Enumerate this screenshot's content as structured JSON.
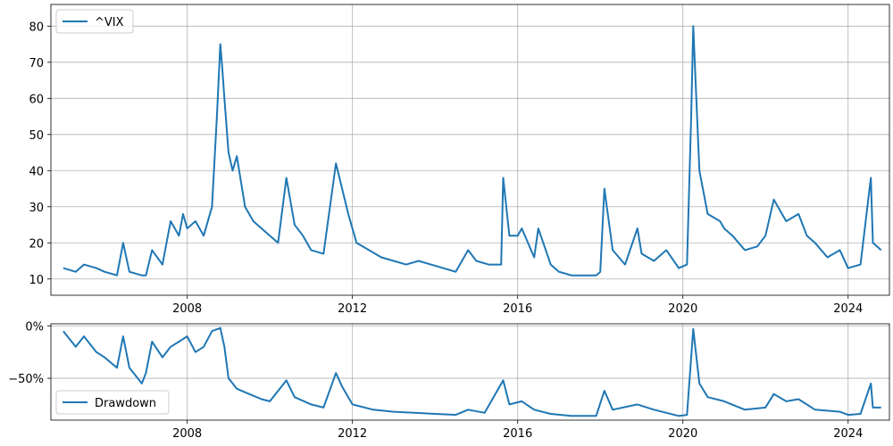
{
  "chart_data": [
    {
      "type": "line",
      "legend": {
        "location": "upper-left"
      },
      "grid": true,
      "xlim": [
        2004.7,
        2025.0
      ],
      "ylim": [
        5.5,
        86
      ],
      "xticks": [
        2008,
        2012,
        2016,
        2020,
        2024
      ],
      "xtick_labels": [
        "2008",
        "2012",
        "2016",
        "2020",
        "2024"
      ],
      "yticks": [
        10,
        20,
        30,
        40,
        50,
        60,
        70,
        80
      ],
      "ytick_labels": [
        "10",
        "20",
        "30",
        "40",
        "50",
        "60",
        "70",
        "80"
      ],
      "series": [
        {
          "name": "^VIX",
          "color": "#1f77b4",
          "x": [
            2005.0,
            2005.3,
            2005.5,
            2005.8,
            2006.0,
            2006.3,
            2006.45,
            2006.6,
            2006.9,
            2007.0,
            2007.15,
            2007.4,
            2007.6,
            2007.8,
            2007.9,
            2008.0,
            2008.2,
            2008.4,
            2008.6,
            2008.72,
            2008.8,
            2008.85,
            2008.9,
            2009.0,
            2009.1,
            2009.2,
            2009.4,
            2009.6,
            2009.8,
            2010.0,
            2010.2,
            2010.4,
            2010.6,
            2010.8,
            2011.0,
            2011.3,
            2011.6,
            2011.75,
            2011.9,
            2012.1,
            2012.4,
            2012.7,
            2013.0,
            2013.3,
            2013.6,
            2013.9,
            2014.2,
            2014.5,
            2014.8,
            2015.0,
            2015.3,
            2015.6,
            2015.65,
            2015.8,
            2016.0,
            2016.1,
            2016.4,
            2016.5,
            2016.8,
            2017.0,
            2017.3,
            2017.6,
            2017.9,
            2018.0,
            2018.1,
            2018.3,
            2018.6,
            2018.9,
            2019.0,
            2019.3,
            2019.6,
            2019.9,
            2020.1,
            2020.2,
            2020.25,
            2020.4,
            2020.6,
            2020.9,
            2021.0,
            2021.2,
            2021.5,
            2021.8,
            2022.0,
            2022.2,
            2022.5,
            2022.8,
            2023.0,
            2023.2,
            2023.5,
            2023.8,
            2024.0,
            2024.3,
            2024.55,
            2024.6,
            2024.8
          ],
          "y": [
            13,
            12,
            14,
            13,
            12,
            11,
            20,
            12,
            11,
            11,
            18,
            14,
            26,
            22,
            28,
            24,
            26,
            22,
            30,
            55,
            75,
            68,
            60,
            45,
            40,
            44,
            30,
            26,
            24,
            22,
            20,
            38,
            25,
            22,
            18,
            17,
            42,
            35,
            28,
            20,
            18,
            16,
            15,
            14,
            15,
            14,
            13,
            12,
            18,
            15,
            14,
            14,
            38,
            22,
            22,
            24,
            16,
            24,
            14,
            12,
            11,
            11,
            11,
            12,
            35,
            18,
            14,
            24,
            17,
            15,
            18,
            13,
            14,
            55,
            80,
            40,
            28,
            26,
            24,
            22,
            18,
            19,
            22,
            32,
            26,
            28,
            22,
            20,
            16,
            18,
            13,
            14,
            38,
            20,
            18
          ]
        }
      ]
    },
    {
      "type": "line",
      "legend": {
        "location": "lower-left"
      },
      "grid": true,
      "xlim": [
        2004.7,
        2025.0
      ],
      "ylim": [
        -90,
        2
      ],
      "xticks": [
        2008,
        2012,
        2016,
        2020,
        2024
      ],
      "xtick_labels": [
        "2008",
        "2012",
        "2016",
        "2020",
        "2024"
      ],
      "yticks": [
        0,
        -50
      ],
      "ytick_labels": [
        "0%",
        "−50%"
      ],
      "series": [
        {
          "name": "Drawdown",
          "color": "#1f77b4",
          "x": [
            2005.0,
            2005.3,
            2005.5,
            2005.8,
            2006.0,
            2006.3,
            2006.45,
            2006.6,
            2006.9,
            2007.0,
            2007.15,
            2007.4,
            2007.6,
            2007.8,
            2008.0,
            2008.2,
            2008.4,
            2008.6,
            2008.8,
            2008.9,
            2009.0,
            2009.2,
            2009.5,
            2009.8,
            2010.0,
            2010.4,
            2010.6,
            2011.0,
            2011.3,
            2011.6,
            2011.75,
            2012.0,
            2012.5,
            2013.0,
            2013.5,
            2014.0,
            2014.5,
            2014.8,
            2015.2,
            2015.65,
            2015.8,
            2016.1,
            2016.4,
            2016.8,
            2017.3,
            2017.9,
            2018.1,
            2018.3,
            2018.9,
            2019.3,
            2019.9,
            2020.1,
            2020.25,
            2020.4,
            2020.6,
            2021.0,
            2021.5,
            2022.0,
            2022.2,
            2022.5,
            2022.8,
            2023.2,
            2023.8,
            2024.0,
            2024.3,
            2024.55,
            2024.6,
            2024.8
          ],
          "y": [
            -5,
            -20,
            -10,
            -25,
            -30,
            -40,
            -10,
            -40,
            -55,
            -45,
            -15,
            -30,
            -20,
            -15,
            -10,
            -25,
            -20,
            -5,
            -2,
            -20,
            -50,
            -60,
            -65,
            -70,
            -72,
            -52,
            -68,
            -75,
            -78,
            -45,
            -58,
            -75,
            -80,
            -82,
            -83,
            -84,
            -85,
            -80,
            -83,
            -52,
            -75,
            -72,
            -80,
            -84,
            -86,
            -86,
            -62,
            -80,
            -75,
            -80,
            -86,
            -85,
            -3,
            -55,
            -68,
            -72,
            -80,
            -78,
            -65,
            -72,
            -70,
            -80,
            -82,
            -85,
            -84,
            -55,
            -78,
            -78
          ]
        }
      ]
    }
  ]
}
